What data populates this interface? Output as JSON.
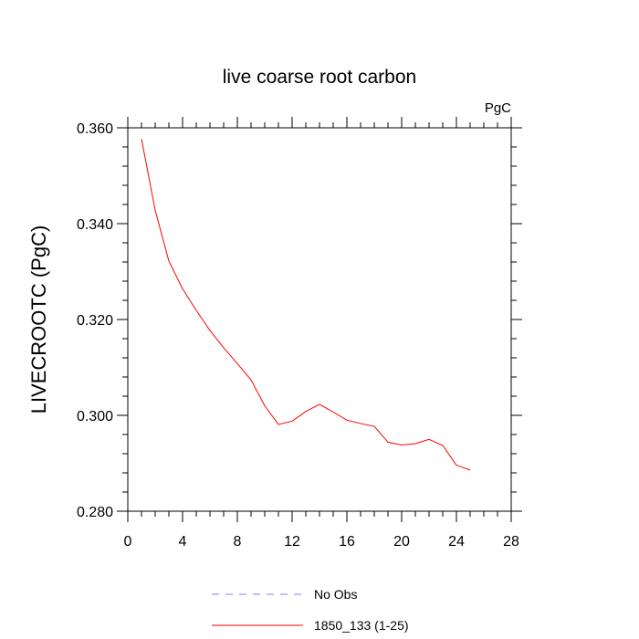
{
  "chart_data": {
    "type": "line",
    "title": "live coarse root carbon",
    "units_label": "PgC",
    "xlabel": "",
    "ylabel": "LIVECROOTC  (PgC)",
    "xlim": [
      0,
      28
    ],
    "ylim": [
      0.28,
      0.36
    ],
    "xticks": [
      0,
      4,
      8,
      12,
      16,
      20,
      24,
      28
    ],
    "xtick_labels": [
      "0",
      "4",
      "8",
      "12",
      "16",
      "20",
      "24",
      "28"
    ],
    "x_minor_step": 1,
    "yticks": [
      0.28,
      0.3,
      0.32,
      0.34,
      0.36
    ],
    "ytick_labels": [
      "0.280",
      "0.300",
      "0.320",
      "0.340",
      "0.360"
    ],
    "y_minor_step": 0.004,
    "grid": false,
    "legend_position": "bottom",
    "series": [
      {
        "name": "No Obs",
        "color": "#8080ff",
        "dash": "dashed",
        "x": [],
        "y": []
      },
      {
        "name": "1850_133 (1-25)",
        "color": "#ff0000",
        "dash": "solid",
        "x": [
          1,
          2,
          3,
          4,
          5,
          6,
          7,
          8,
          9,
          10,
          11,
          12,
          13,
          14,
          15,
          16,
          17,
          18,
          19,
          20,
          21,
          22,
          23,
          24,
          25
        ],
        "y": [
          0.3577,
          0.3428,
          0.3322,
          0.3264,
          0.3219,
          0.3177,
          0.3141,
          0.3108,
          0.3074,
          0.302,
          0.2981,
          0.2988,
          0.3008,
          0.3023,
          0.3007,
          0.299,
          0.2983,
          0.2977,
          0.2944,
          0.2938,
          0.2941,
          0.295,
          0.2937,
          0.2896,
          0.2886
        ]
      }
    ]
  }
}
